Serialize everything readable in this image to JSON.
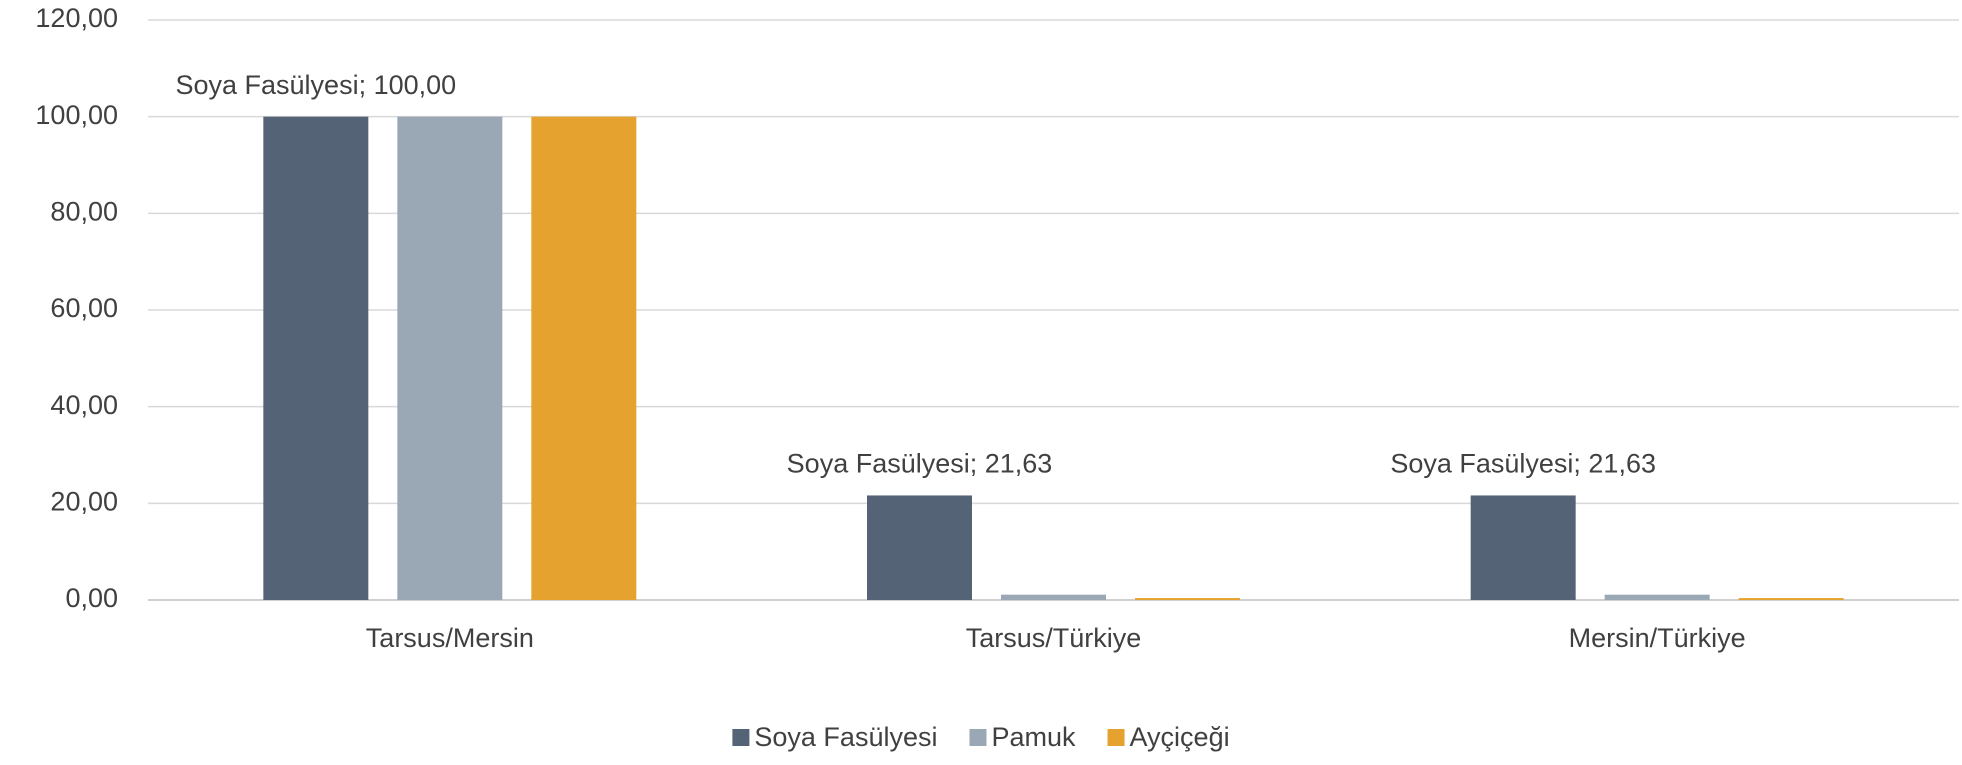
{
  "chart_data": {
    "type": "bar",
    "categories": [
      "Tarsus/Mersin",
      "Tarsus/Türkiye",
      "Mersin/Türkiye"
    ],
    "series": [
      {
        "name": "Soya Fasülyesi",
        "color": "#556376",
        "values": [
          100,
          21.63,
          21.63
        ],
        "value_labels": [
          "Soya Fasülyesi; 100,00",
          "Soya Fasülyesi; 21,63",
          "Soya Fasülyesi; 21,63"
        ]
      },
      {
        "name": "Pamuk",
        "color": "#9aa7b5",
        "values": [
          100,
          1.1,
          1.1
        ]
      },
      {
        "name": "Ayçiçeği",
        "color": "#e6a22f",
        "values": [
          100,
          0.4,
          0.4
        ]
      }
    ],
    "ylim": [
      0,
      120
    ],
    "yticks": [
      {
        "value": 0,
        "label": "0,00"
      },
      {
        "value": 20,
        "label": "20,00"
      },
      {
        "value": 40,
        "label": "40,00"
      },
      {
        "value": 60,
        "label": "60,00"
      },
      {
        "value": 80,
        "label": "80,00"
      },
      {
        "value": 100,
        "label": "100,00"
      },
      {
        "value": 120,
        "label": "120,00"
      }
    ],
    "grid": true,
    "legend": "bottom"
  }
}
